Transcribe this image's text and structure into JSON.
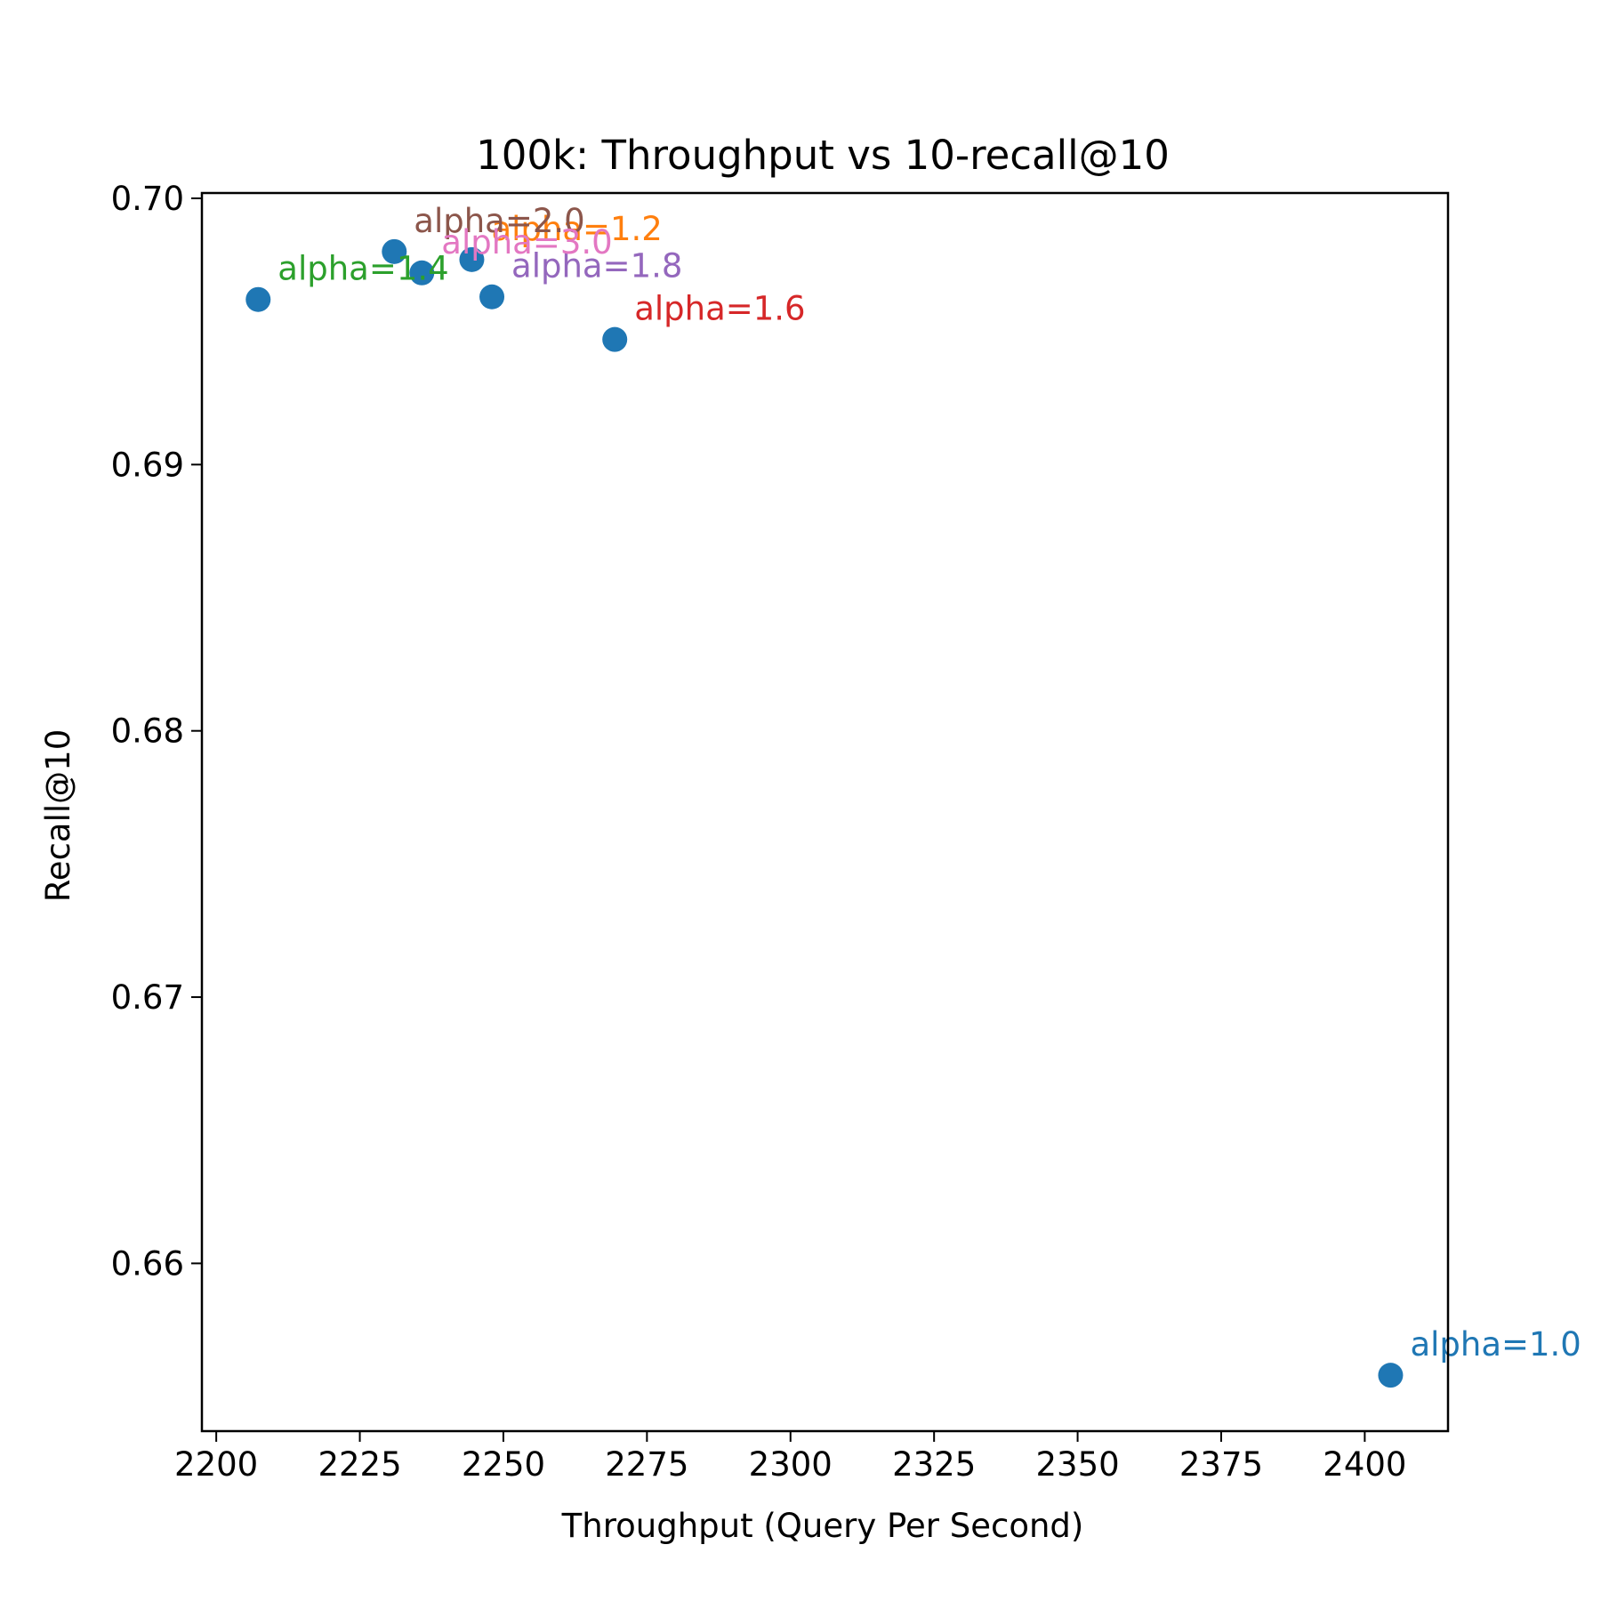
{
  "chart_data": {
    "type": "scatter",
    "title": "100k: Throughput vs 10-recall@10",
    "xlabel": "Throughput (Query Per Second)",
    "ylabel": "Recall@10",
    "xlim": [
      2197.5,
      2414.5
    ],
    "ylim": [
      0.6537,
      0.7002
    ],
    "xticks": [
      2200,
      2225,
      2250,
      2275,
      2300,
      2325,
      2350,
      2375,
      2400
    ],
    "yticks": [
      0.66,
      0.67,
      0.68,
      0.69,
      0.7
    ],
    "xtick_labels": [
      "2200",
      "2225",
      "2250",
      "2275",
      "2300",
      "2325",
      "2350",
      "2375",
      "2400"
    ],
    "ytick_labels": [
      "0.66",
      "0.67",
      "0.68",
      "0.69",
      "0.70"
    ],
    "grid": false,
    "marker_color": "#1f77b4",
    "points": [
      {
        "label": "alpha=1.0",
        "x": 2404.5,
        "y": 0.6558,
        "label_color": "#1f77b4"
      },
      {
        "label": "alpha=1.2",
        "x": 2244.5,
        "y": 0.6977,
        "label_color": "#ff7f0e"
      },
      {
        "label": "alpha=1.4",
        "x": 2207.3,
        "y": 0.6962,
        "label_color": "#2ca02c"
      },
      {
        "label": "alpha=1.6",
        "x": 2269.4,
        "y": 0.6947,
        "label_color": "#d62728"
      },
      {
        "label": "alpha=1.8",
        "x": 2248.0,
        "y": 0.6963,
        "label_color": "#9467bd"
      },
      {
        "label": "alpha=2.0",
        "x": 2231.0,
        "y": 0.698,
        "label_color": "#8c564b"
      },
      {
        "label": "alpha=3.0",
        "x": 2235.8,
        "y": 0.6972,
        "label_color": "#e377c2"
      }
    ]
  }
}
